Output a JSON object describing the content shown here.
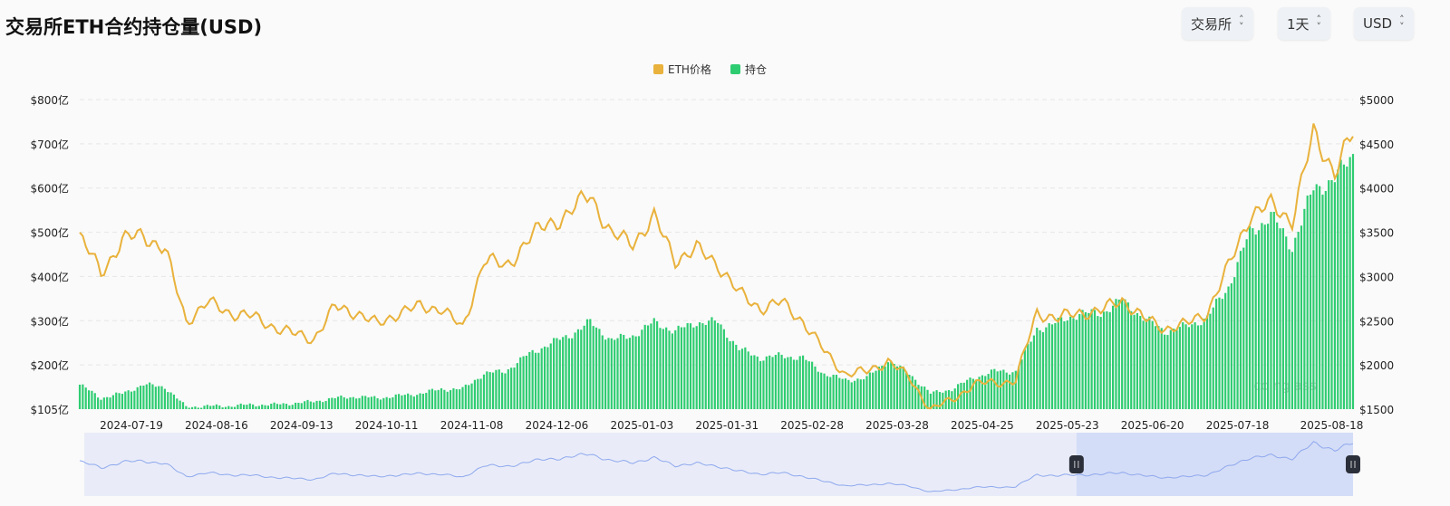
{
  "header": {
    "title": "交易所ETH合约持仓量(USD)",
    "selects": [
      {
        "label": "交易所"
      },
      {
        "label": "1天"
      },
      {
        "label": "USD"
      }
    ]
  },
  "watermark": "coinglass",
  "chart_data": {
    "type": "bar+line",
    "legend": [
      {
        "name": "ETH价格",
        "color": "#e9b23c"
      },
      {
        "name": "持仓",
        "color": "#2ecc71"
      }
    ],
    "legend_position": "top-center",
    "x_range": [
      "2024-07-02",
      "2025-08-25"
    ],
    "x_tick_labels": [
      "2024-07-19",
      "2024-08-16",
      "2024-09-13",
      "2024-10-11",
      "2024-11-08",
      "2024-12-06",
      "2025-01-03",
      "2025-01-31",
      "2025-02-28",
      "2025-03-28",
      "2025-04-25",
      "2025-05-23",
      "2025-06-20",
      "2025-07-18",
      "2025-08-18"
    ],
    "y_left": {
      "ticks": [
        "$105亿",
        "$200亿",
        "$300亿",
        "$400亿",
        "$500亿",
        "$600亿",
        "$700亿",
        "$800亿"
      ],
      "range": [
        105,
        800
      ],
      "unit": "亿 USD"
    },
    "y_right": {
      "ticks": [
        "$1500",
        "$2000",
        "$2500",
        "$3000",
        "$3500",
        "$4000",
        "$4500",
        "$5000"
      ],
      "range": [
        1500,
        5000
      ]
    },
    "grid": true,
    "dates": [
      "2024-07-02",
      "2024-07-09",
      "2024-07-16",
      "2024-07-23",
      "2024-07-30",
      "2024-08-06",
      "2024-08-13",
      "2024-08-20",
      "2024-08-27",
      "2024-09-03",
      "2024-09-10",
      "2024-09-17",
      "2024-09-24",
      "2024-10-01",
      "2024-10-08",
      "2024-10-15",
      "2024-10-22",
      "2024-10-29",
      "2024-11-05",
      "2024-11-12",
      "2024-11-19",
      "2024-11-26",
      "2024-12-03",
      "2024-12-10",
      "2024-12-17",
      "2024-12-24",
      "2024-12-31",
      "2025-01-07",
      "2025-01-14",
      "2025-01-21",
      "2025-01-28",
      "2025-02-04",
      "2025-02-11",
      "2025-02-18",
      "2025-02-25",
      "2025-03-04",
      "2025-03-11",
      "2025-03-18",
      "2025-03-25",
      "2025-04-01",
      "2025-04-08",
      "2025-04-15",
      "2025-04-22",
      "2025-04-29",
      "2025-05-06",
      "2025-05-13",
      "2025-05-20",
      "2025-05-27",
      "2025-06-03",
      "2025-06-10",
      "2025-06-17",
      "2025-06-24",
      "2025-07-01",
      "2025-07-08",
      "2025-07-15",
      "2025-07-22",
      "2025-07-29",
      "2025-08-05",
      "2025-08-12",
      "2025-08-19",
      "2025-08-25"
    ],
    "series": [
      {
        "name": "ETH价格",
        "axis": "right",
        "type": "line",
        "values": [
          3440,
          3050,
          3400,
          3480,
          3300,
          2500,
          2700,
          2600,
          2550,
          2450,
          2350,
          2300,
          2650,
          2600,
          2450,
          2600,
          2650,
          2650,
          2400,
          3200,
          3100,
          3400,
          3600,
          3700,
          3950,
          3450,
          3400,
          3650,
          3200,
          3300,
          3150,
          2800,
          2650,
          2700,
          2500,
          2150,
          1900,
          1920,
          2050,
          1850,
          1500,
          1600,
          1780,
          1800,
          1820,
          2600,
          2520,
          2600,
          2600,
          2750,
          2520,
          2420,
          2450,
          2600,
          3100,
          3700,
          3800,
          3650,
          4600,
          4200,
          4600
        ]
      },
      {
        "name": "持仓",
        "axis": "left",
        "type": "bar",
        "values": [
          160,
          130,
          140,
          160,
          155,
          110,
          112,
          112,
          115,
          115,
          118,
          122,
          130,
          133,
          130,
          135,
          140,
          150,
          150,
          185,
          190,
          225,
          250,
          270,
          300,
          260,
          270,
          300,
          280,
          300,
          300,
          240,
          220,
          225,
          220,
          185,
          170,
          175,
          215,
          185,
          140,
          150,
          175,
          190,
          190,
          285,
          300,
          320,
          320,
          350,
          310,
          280,
          290,
          310,
          380,
          500,
          540,
          470,
          600,
          620,
          680
        ]
      }
    ],
    "navigator": {
      "selection": [
        "2025-05-26",
        "2025-08-25"
      ]
    }
  }
}
